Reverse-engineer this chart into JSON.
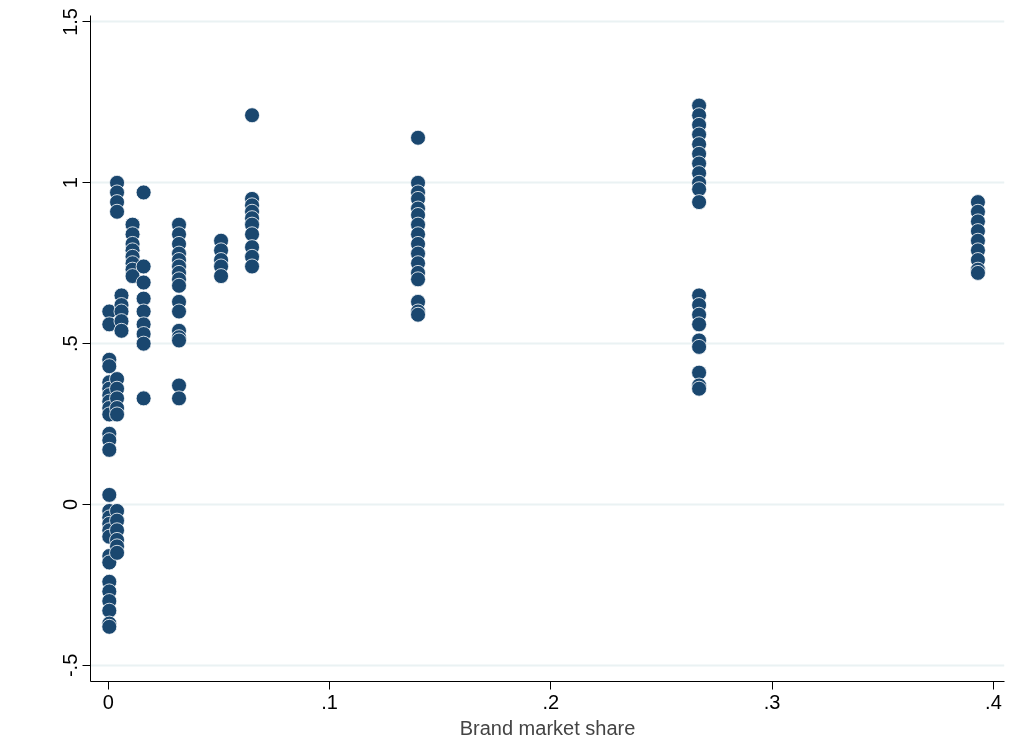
{
  "chart_data": {
    "type": "scatter",
    "xlabel": "Brand market share",
    "marker": "circle",
    "grid": "y",
    "xlim": [
      -0.008,
      0.405
    ],
    "ylim": [
      -0.55,
      1.52
    ],
    "xticks": [
      {
        "value": 0,
        "label": "0"
      },
      {
        "value": 0.1,
        "label": ".1"
      },
      {
        "value": 0.2,
        "label": ".2"
      },
      {
        "value": 0.3,
        "label": ".3"
      },
      {
        "value": 0.4,
        "label": ".4"
      }
    ],
    "yticks": [
      {
        "value": -0.5,
        "label": "-.5"
      },
      {
        "value": 0,
        "label": "0"
      },
      {
        "value": 0.5,
        "label": ".5"
      },
      {
        "value": 1,
        "label": "1"
      },
      {
        "value": 1.5,
        "label": "1.5"
      }
    ],
    "series": [
      {
        "color": "#1a476f",
        "x": [
          0.0005,
          0.0005,
          0.0005,
          0.0005,
          0.0005,
          0.0005,
          0.0005,
          0.0005,
          0.0005,
          0.0005,
          0.0005,
          0.0005,
          0.0005,
          0.0005,
          0.0005,
          0.0005,
          0.0005,
          0.0005,
          0.0005,
          0.0005,
          0.0005,
          0.0005,
          0.0005,
          0.0005,
          0.0005,
          0.0005,
          0.0005,
          0.004,
          0.004,
          0.004,
          0.004,
          0.004,
          0.004,
          0.004,
          0.004,
          0.004,
          0.004,
          0.004,
          0.004,
          0.004,
          0.004,
          0.004,
          0.006,
          0.006,
          0.006,
          0.006,
          0.006,
          0.011,
          0.011,
          0.011,
          0.011,
          0.011,
          0.011,
          0.011,
          0.011,
          0.016,
          0.016,
          0.016,
          0.016,
          0.016,
          0.016,
          0.016,
          0.016,
          0.016,
          0.032,
          0.032,
          0.032,
          0.032,
          0.032,
          0.032,
          0.032,
          0.032,
          0.032,
          0.032,
          0.032,
          0.032,
          0.032,
          0.032,
          0.032,
          0.032,
          0.051,
          0.051,
          0.051,
          0.051,
          0.051,
          0.065,
          0.065,
          0.065,
          0.065,
          0.065,
          0.065,
          0.065,
          0.065,
          0.065,
          0.065,
          0.14,
          0.14,
          0.14,
          0.14,
          0.14,
          0.14,
          0.14,
          0.14,
          0.14,
          0.14,
          0.14,
          0.14,
          0.14,
          0.14,
          0.14,
          0.14,
          0.267,
          0.267,
          0.267,
          0.267,
          0.267,
          0.267,
          0.267,
          0.267,
          0.267,
          0.267,
          0.267,
          0.267,
          0.267,
          0.267,
          0.267,
          0.267,
          0.267,
          0.267,
          0.267,
          0.267,
          0.393,
          0.393,
          0.393,
          0.393,
          0.393,
          0.393,
          0.393,
          0.393,
          0.393
        ],
        "values": [
          0.6,
          0.56,
          0.45,
          0.43,
          0.38,
          0.36,
          0.34,
          0.32,
          0.3,
          0.28,
          0.22,
          0.2,
          0.17,
          0.03,
          -0.02,
          -0.04,
          -0.06,
          -0.08,
          -0.1,
          -0.16,
          -0.18,
          -0.24,
          -0.27,
          -0.3,
          -0.33,
          -0.37,
          -0.38,
          1.0,
          0.97,
          0.94,
          0.91,
          0.39,
          0.36,
          0.33,
          0.3,
          0.28,
          -0.02,
          -0.05,
          -0.08,
          -0.11,
          -0.13,
          -0.15,
          0.65,
          0.62,
          0.6,
          0.57,
          0.54,
          0.87,
          0.84,
          0.81,
          0.79,
          0.77,
          0.75,
          0.73,
          0.71,
          0.97,
          0.74,
          0.69,
          0.64,
          0.6,
          0.56,
          0.53,
          0.5,
          0.33,
          0.87,
          0.84,
          0.81,
          0.78,
          0.76,
          0.74,
          0.72,
          0.7,
          0.68,
          0.63,
          0.6,
          0.54,
          0.52,
          0.51,
          0.37,
          0.33,
          0.82,
          0.79,
          0.76,
          0.74,
          0.71,
          1.21,
          0.95,
          0.93,
          0.91,
          0.89,
          0.87,
          0.84,
          0.8,
          0.77,
          0.74,
          1.14,
          1.0,
          0.97,
          0.95,
          0.92,
          0.9,
          0.87,
          0.84,
          0.81,
          0.78,
          0.75,
          0.72,
          0.7,
          0.63,
          0.6,
          0.59,
          1.24,
          1.21,
          1.18,
          1.15,
          1.12,
          1.09,
          1.06,
          1.03,
          1.0,
          0.98,
          0.94,
          0.65,
          0.62,
          0.59,
          0.56,
          0.51,
          0.49,
          0.41,
          0.37,
          0.36,
          0.94,
          0.91,
          0.88,
          0.85,
          0.82,
          0.79,
          0.76,
          0.73,
          0.72
        ]
      }
    ]
  }
}
